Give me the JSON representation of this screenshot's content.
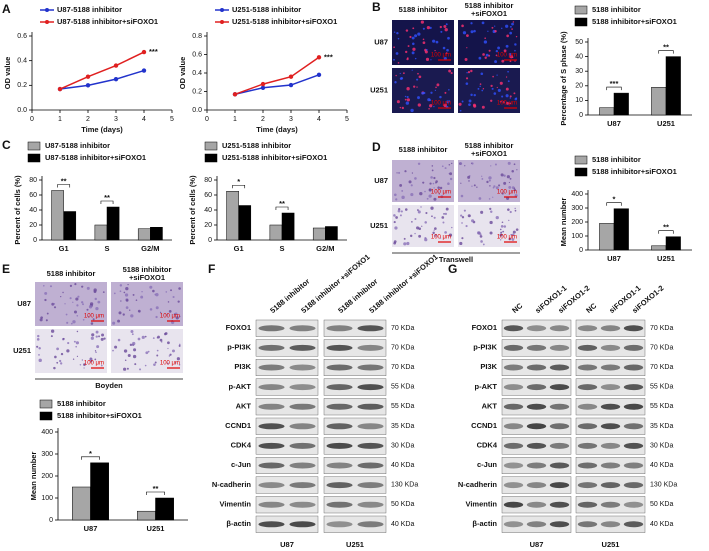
{
  "panels": [
    "A",
    "B",
    "C",
    "D",
    "E",
    "F",
    "G"
  ],
  "chart_data": [
    {
      "type": "line",
      "x_label": "Time (days)",
      "y_label": "OD value",
      "x": [
        1,
        2,
        3,
        4
      ],
      "xlim": [
        0,
        5
      ],
      "xticks": [
        0,
        1,
        2,
        3,
        4,
        5
      ],
      "ylim": [
        0,
        0.6
      ],
      "yticks": [
        {
          "value": 0,
          "label": "0.0"
        },
        0.2,
        0.4,
        0.6
      ],
      "series": [
        {
          "name": "U87-5188 inhibitor",
          "color": "#2233cc",
          "values": [
            0.17,
            0.2,
            0.25,
            0.32
          ]
        },
        {
          "name": "U87-5188 inhibitor+siFOXO1",
          "color": "#e02020",
          "values": [
            0.17,
            0.27,
            0.36,
            0.47
          ]
        }
      ],
      "annotation": "***"
    },
    {
      "type": "line",
      "x_label": "Time (days)",
      "y_label": "OD value",
      "x": [
        1,
        2,
        3,
        4
      ],
      "xlim": [
        0,
        5
      ],
      "xticks": [
        0,
        1,
        2,
        3,
        4,
        5
      ],
      "ylim": [
        0,
        0.8
      ],
      "yticks": [
        {
          "value": 0,
          "label": "0.0"
        },
        0.2,
        0.4,
        0.6,
        0.8
      ],
      "series": [
        {
          "name": "U251-5188 inhibitor",
          "color": "#2233cc",
          "values": [
            0.17,
            0.24,
            0.27,
            0.38
          ]
        },
        {
          "name": "U251-5188 inhibitor+siFOXO1",
          "color": "#e02020",
          "values": [
            0.17,
            0.28,
            0.36,
            0.57
          ]
        }
      ],
      "annotation": "***"
    },
    {
      "type": "bar",
      "y_label": "Percentage of S phase (%)",
      "categories": [
        "U87",
        "U251"
      ],
      "ylim": [
        0,
        50
      ],
      "yticks": [
        0,
        10,
        20,
        30,
        40,
        50
      ],
      "series": [
        {
          "name": "5188 inhibitor",
          "color": "#a6a6a6",
          "values": [
            5,
            19
          ]
        },
        {
          "name": "5188 inhibitor+siFOXO1",
          "color": "#000000",
          "values": [
            15,
            40
          ]
        }
      ],
      "annotations": [
        "***",
        "**"
      ]
    },
    {
      "type": "bar",
      "y_label": "Percent of cells (%)",
      "categories": [
        "G1",
        "S",
        "G2/M"
      ],
      "ylim": [
        0,
        80
      ],
      "yticks": [
        0,
        20,
        40,
        60,
        80
      ],
      "series": [
        {
          "name": "U87-5188 inhibitor",
          "color": "#a6a6a6",
          "values": [
            66,
            20,
            15
          ]
        },
        {
          "name": "U87-5188 inhibitor+siFOXO1",
          "color": "#000000",
          "values": [
            38,
            44,
            17
          ]
        }
      ],
      "annotations": [
        "**",
        "**",
        null
      ]
    },
    {
      "type": "bar",
      "y_label": "Percent of cells (%)",
      "categories": [
        "G1",
        "S",
        "G2/M"
      ],
      "ylim": [
        0,
        80
      ],
      "yticks": [
        0,
        20,
        40,
        60,
        80
      ],
      "series": [
        {
          "name": "U251-5188 inhibitor",
          "color": "#a6a6a6",
          "values": [
            65,
            20,
            16
          ]
        },
        {
          "name": "U251-5188 inhibitor+siFOXO1",
          "color": "#000000",
          "values": [
            46,
            36,
            18
          ]
        }
      ],
      "annotations": [
        "*",
        "**",
        null
      ]
    },
    {
      "type": "bar",
      "y_label": "Mean number",
      "categories": [
        "U87",
        "U251"
      ],
      "ylim": [
        0,
        400
      ],
      "yticks": [
        0,
        100,
        200,
        300,
        400
      ],
      "series": [
        {
          "name": "5188 inhibitor",
          "color": "#a6a6a6",
          "values": [
            190,
            30
          ]
        },
        {
          "name": "5188 inhibitor+siFOXO1",
          "color": "#000000",
          "values": [
            295,
            95
          ]
        }
      ],
      "annotations": [
        "*",
        "**"
      ]
    },
    {
      "type": "bar",
      "y_label": "Mean number",
      "categories": [
        "U87",
        "U251"
      ],
      "ylim": [
        0,
        400
      ],
      "yticks": [
        0,
        100,
        200,
        300,
        400
      ],
      "series": [
        {
          "name": "5188 inhibitor",
          "color": "#a6a6a6",
          "values": [
            150,
            40
          ]
        },
        {
          "name": "5188 inhibitor+siFOXO1",
          "color": "#000000",
          "values": [
            260,
            100
          ]
        }
      ],
      "annotations": [
        "*",
        "**"
      ]
    }
  ],
  "micrographs": [
    {
      "columns": [
        [
          "5188 inhibitor"
        ],
        [
          "5188 inhibitor",
          "+siFOXO1"
        ]
      ],
      "rows": [
        "U87",
        "U251"
      ],
      "scale": "100 μm"
    },
    {
      "columns": [
        [
          "5188 inhibitor"
        ],
        [
          "5188 inhibitor",
          "+siFOXO1"
        ]
      ],
      "rows": [
        "U87",
        "U251"
      ],
      "scale": "100 μm",
      "caption": "Transwell"
    },
    {
      "columns": [
        [
          "5188 inhibitor"
        ],
        [
          "5188 inhibitor",
          "+siFOXO1"
        ]
      ],
      "rows": [
        "U87",
        "U251"
      ],
      "scale": "100 μm",
      "caption": "Boyden"
    }
  ],
  "blots": [
    {
      "lanes": [
        "5188 inhibitor",
        "5188 inhibitor +siFOXO1",
        "5188 inhibitor",
        "5188 inhibitor +siFOXO1"
      ],
      "proteins": [
        "FOXO1",
        "p-PI3K",
        "PI3K",
        "p-AKT",
        "AKT",
        "CCND1",
        "CDK4",
        "c-Jun",
        "N-cadherin",
        "Vimentin",
        "β-actin"
      ],
      "sizes": [
        "70 KDa",
        "70 KDa",
        "70 KDa",
        "55 KDa",
        "55 KDa",
        "35 KDa",
        "30 KDa",
        "40 KDa",
        "130 KDa",
        "50 KDa",
        "40 KDa"
      ],
      "cell_lines": [
        "U87",
        "U251"
      ]
    },
    {
      "lanes": [
        "NC",
        "siFOXO1-1",
        "siFOXO1-2",
        "NC",
        "siFOXO1-1",
        "siFOXO1-2"
      ],
      "proteins": [
        "FOXO1",
        "p-PI3K",
        "PI3K",
        "p-AKT",
        "AKT",
        "CCND1",
        "CDK4",
        "c-Jun",
        "N-cadherin",
        "Vimentin",
        "β-actin"
      ],
      "sizes": [
        "70 KDa",
        "70 KDa",
        "70 KDa",
        "55 KDa",
        "55 KDa",
        "35 KDa",
        "30 KDa",
        "40 KDa",
        "130 KDa",
        "50 KDa",
        "40 KDa"
      ],
      "cell_lines": [
        "U87",
        "U251"
      ]
    }
  ]
}
